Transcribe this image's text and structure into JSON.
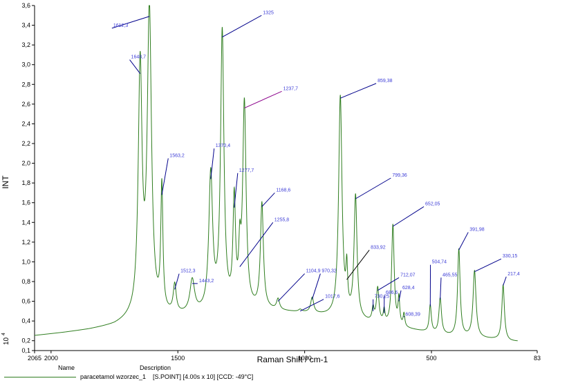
{
  "chart_data": {
    "type": "line",
    "xlabel": "Raman Shift / cm-1",
    "ylabel": "INT",
    "y_multiplier_label": "10",
    "y_multiplier_exp": "4",
    "xlim": [
      2065,
      83
    ],
    "x_reversed": true,
    "ylim": [
      0.1,
      3.6
    ],
    "x_ticks": [
      {
        "value": 2065,
        "label": "2065"
      },
      {
        "value": 2000,
        "label": "2000"
      },
      {
        "value": 1500,
        "label": "1500"
      },
      {
        "value": 1000,
        "label": "1000"
      },
      {
        "value": 500,
        "label": "500"
      },
      {
        "value": 83,
        "label": "83"
      }
    ],
    "y_ticks": [
      {
        "value": 0.1,
        "label": "0,1"
      },
      {
        "value": 0.2,
        "label": "0,2"
      },
      {
        "value": 0.4,
        "label": "0,4"
      },
      {
        "value": 0.6,
        "label": "0,6"
      },
      {
        "value": 0.8,
        "label": "0,8"
      },
      {
        "value": 1.0,
        "label": "1,0"
      },
      {
        "value": 1.2,
        "label": "1,2"
      },
      {
        "value": 1.4,
        "label": "1,4"
      },
      {
        "value": 1.6,
        "label": "1,6"
      },
      {
        "value": 1.8,
        "label": "1,8"
      },
      {
        "value": 2.0,
        "label": "2,0"
      },
      {
        "value": 2.2,
        "label": "2,2"
      },
      {
        "value": 2.4,
        "label": "2,4"
      },
      {
        "value": 2.6,
        "label": "2,6"
      },
      {
        "value": 2.8,
        "label": "2,8"
      },
      {
        "value": 3.0,
        "label": "3,0"
      },
      {
        "value": 3.2,
        "label": "3,2"
      },
      {
        "value": 3.4,
        "label": "3,4"
      },
      {
        "value": 3.6,
        "label": "3,6"
      }
    ],
    "grid": false,
    "baseline": [
      [
        2065,
        0.25
      ],
      [
        1950,
        0.28
      ],
      [
        1850,
        0.31
      ],
      [
        1750,
        0.35
      ],
      [
        1690,
        0.4
      ],
      [
        1160,
        0.5
      ],
      [
        980,
        0.47
      ],
      [
        560,
        0.3
      ],
      [
        420,
        0.24
      ],
      [
        250,
        0.21
      ],
      [
        190,
        0.19
      ],
      [
        160,
        0.19
      ]
    ],
    "peaks": [
      {
        "x": 1648.7,
        "y": 2.91,
        "w": 9,
        "label": "1648,7"
      },
      {
        "x": 1612.3,
        "y": 3.49,
        "w": 10,
        "label": "1612,3"
      },
      {
        "x": 1563.2,
        "y": 1.68,
        "w": 5,
        "label": "1563,2"
      },
      {
        "x": 1512.3,
        "y": 0.72,
        "w": 7,
        "label": "1512,3"
      },
      {
        "x": 1443.2,
        "y": 0.78,
        "w": 11,
        "label": "1443,2"
      },
      {
        "x": 1370.4,
        "y": 1.84,
        "w": 9,
        "label": "1370,4"
      },
      {
        "x": 1325,
        "y": 3.28,
        "w": 8,
        "label": "1325"
      },
      {
        "x": 1277.7,
        "y": 1.55,
        "w": 6,
        "label": "1277,7"
      },
      {
        "x": 1255.8,
        "y": 0.95,
        "w": 5,
        "label": "1255,8"
      },
      {
        "x": 1237.7,
        "y": 2.56,
        "w": 8,
        "label": "1237,7"
      },
      {
        "x": 1168.6,
        "y": 1.56,
        "w": 7,
        "label": "1168,6"
      },
      {
        "x": 1104.9,
        "y": 0.6,
        "w": 7,
        "label": "1104,9"
      },
      {
        "x": 1017.6,
        "y": 0.5,
        "w": 8,
        "label": "1017,6"
      },
      {
        "x": 970.32,
        "y": 0.62,
        "w": 7,
        "label": "970,32"
      },
      {
        "x": 859.38,
        "y": 2.66,
        "w": 8,
        "label": "859,38"
      },
      {
        "x": 833.92,
        "y": 0.82,
        "w": 4,
        "label": "833,92"
      },
      {
        "x": 799.36,
        "y": 1.64,
        "w": 7,
        "label": "799,36"
      },
      {
        "x": 730.25,
        "y": 0.5,
        "w": 5,
        "label": "730,25"
      },
      {
        "x": 712.07,
        "y": 0.71,
        "w": 6,
        "label": "712,07"
      },
      {
        "x": 686.6,
        "y": 0.48,
        "w": 4,
        "label": "686,6"
      },
      {
        "x": 652.05,
        "y": 1.36,
        "w": 6,
        "label": "652,05"
      },
      {
        "x": 628.4,
        "y": 0.6,
        "w": 4,
        "label": "628,4"
      },
      {
        "x": 608.39,
        "y": 0.45,
        "w": 4,
        "label": "608,39"
      },
      {
        "x": 504.74,
        "y": 0.55,
        "w": 5,
        "label": "504,74"
      },
      {
        "x": 465.55,
        "y": 0.62,
        "w": 6,
        "label": "465,55"
      },
      {
        "x": 391.98,
        "y": 1.12,
        "w": 6,
        "label": "391,98"
      },
      {
        "x": 330.15,
        "y": 0.9,
        "w": 7,
        "label": "330,15"
      },
      {
        "x": 217.4,
        "y": 0.76,
        "w": 6,
        "label": "217,4"
      }
    ],
    "annotations": [
      {
        "peak": "1612,3",
        "lx": 1760,
        "ly": 3.37,
        "color": "#00008b"
      },
      {
        "peak": "1648,7",
        "lx": 1690,
        "ly": 3.05,
        "color": "#00008b"
      },
      {
        "peak": "1563,2",
        "lx": 1538,
        "ly": 2.05,
        "color": "#00008b"
      },
      {
        "peak": "1512,3",
        "lx": 1495,
        "ly": 0.88,
        "color": "#00008b"
      },
      {
        "peak": "1443,2",
        "lx": 1422,
        "ly": 0.78,
        "color": "#00008b"
      },
      {
        "peak": "1370,4",
        "lx": 1357,
        "ly": 2.15,
        "color": "#00008b"
      },
      {
        "peak": "1325",
        "lx": 1170,
        "ly": 3.5,
        "color": "#00008b"
      },
      {
        "peak": "1277,7",
        "lx": 1264,
        "ly": 1.9,
        "color": "#00008b"
      },
      {
        "peak": "1255,8",
        "lx": 1125,
        "ly": 1.4,
        "color": "#00008b"
      },
      {
        "peak": "1237,7",
        "lx": 1090,
        "ly": 2.73,
        "color": "#8b008b"
      },
      {
        "peak": "1168,6",
        "lx": 1118,
        "ly": 1.7,
        "color": "#00008b"
      },
      {
        "peak": "1104,9",
        "lx": 1000,
        "ly": 0.88,
        "color": "#00008b"
      },
      {
        "peak": "1017,6",
        "lx": 925,
        "ly": 0.62,
        "color": "#00008b"
      },
      {
        "peak": "970,32",
        "lx": 938,
        "ly": 0.88,
        "color": "#00008b"
      },
      {
        "peak": "859,38",
        "lx": 718,
        "ly": 2.81,
        "color": "#00008b"
      },
      {
        "peak": "833,92",
        "lx": 745,
        "ly": 1.12,
        "color": "#000000"
      },
      {
        "peak": "799,36",
        "lx": 660,
        "ly": 1.85,
        "color": "#00008b"
      },
      {
        "peak": "730,25",
        "lx": 730,
        "ly": 0.62,
        "color": "#00008b"
      },
      {
        "peak": "712,07",
        "lx": 628,
        "ly": 0.84,
        "color": "#00008b"
      },
      {
        "peak": "686,6",
        "lx": 686,
        "ly": 0.66,
        "color": "#00008b"
      },
      {
        "peak": "652,05",
        "lx": 530,
        "ly": 1.56,
        "color": "#00008b"
      },
      {
        "peak": "628,4",
        "lx": 620,
        "ly": 0.71,
        "color": "#00008b"
      },
      {
        "peak": "608,39",
        "lx": 608,
        "ly": 0.44,
        "color": "#00008b"
      },
      {
        "peak": "504,74",
        "lx": 504,
        "ly": 0.97,
        "color": "#00008b"
      },
      {
        "peak": "465,55",
        "lx": 462,
        "ly": 0.84,
        "color": "#00008b"
      },
      {
        "peak": "391,98",
        "lx": 355,
        "ly": 1.3,
        "color": "#00008b"
      },
      {
        "peak": "330,15",
        "lx": 225,
        "ly": 1.03,
        "color": "#00008b"
      },
      {
        "peak": "217,4",
        "lx": 205,
        "ly": 0.85,
        "color": "#00008b"
      }
    ],
    "series": [
      {
        "name": "paracetamol wzorzec_1",
        "description": "[S.POINT] [4.00s x 10] [CCD: -49°C]",
        "color": "#2e7d1e"
      }
    ]
  },
  "legend": {
    "name_header": "Name",
    "description_header": "Description",
    "entry_name": "paracetamol wzorzec_1",
    "entry_description": "[S.POINT] [4.00s x 10] [CCD: -49°C]"
  }
}
